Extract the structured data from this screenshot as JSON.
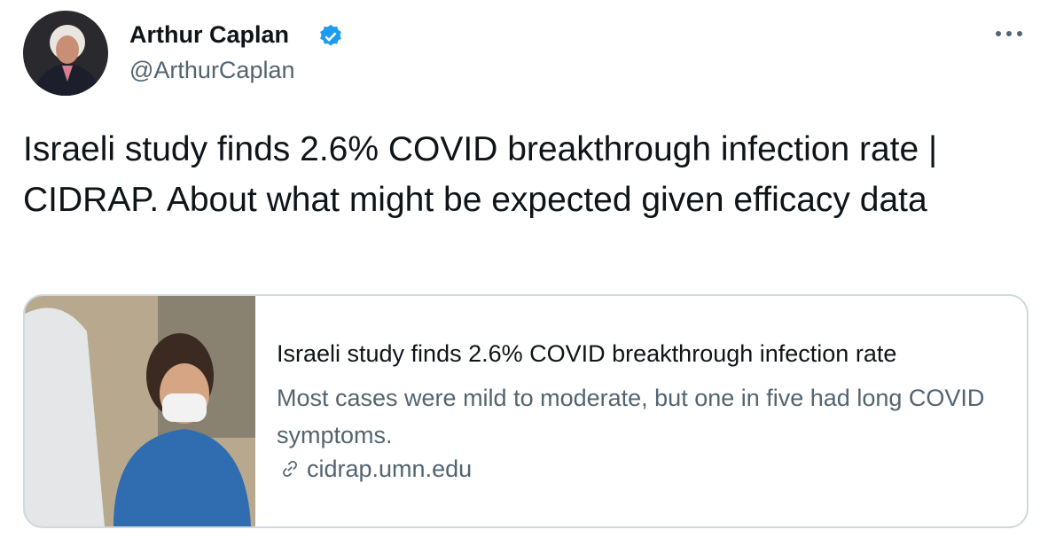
{
  "author": {
    "name": "Arthur Caplan",
    "handle": "@ArthurCaplan"
  },
  "tweet": {
    "text": "Israeli study finds 2.6% COVID breakthrough infection rate | CIDRAP. About what might be expected given efficacy data"
  },
  "card": {
    "title": "Israeli study finds 2.6% COVID breakthrough infection rate",
    "description": "Most cases were mild to moderate, but one in five had long COVID symptoms.",
    "domain": "cidrap.umn.edu"
  }
}
